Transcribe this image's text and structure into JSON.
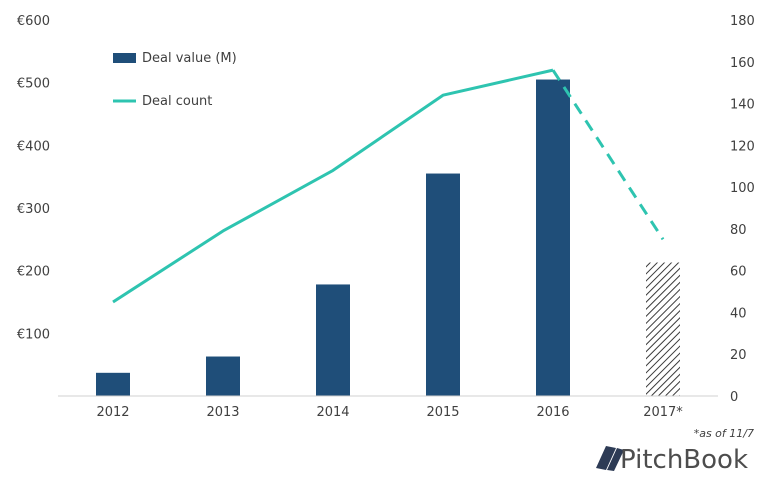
{
  "chart_data": {
    "type": "bar",
    "categories": [
      "2012",
      "2013",
      "2014",
      "2015",
      "2016",
      "2017*"
    ],
    "series": [
      {
        "name": "Deal value (M)",
        "type": "bar",
        "axis": "left",
        "values": [
          37,
          63,
          178,
          355,
          505,
          213
        ],
        "color": "#1f4e79",
        "hatched_last": true
      },
      {
        "name": "Deal count",
        "type": "line",
        "axis": "right",
        "values": [
          45,
          79,
          108,
          144,
          156,
          75
        ],
        "color": "#2ec4b0",
        "dashed_last_segment": true
      }
    ],
    "ylim_left": [
      0,
      600
    ],
    "yticks_left": [
      "",
      "€100",
      "€200",
      "€300",
      "€400",
      "€500",
      "€600"
    ],
    "ylim_right": [
      0,
      180
    ],
    "yticks_right": [
      "0",
      "20",
      "40",
      "60",
      "80",
      "100",
      "120",
      "140",
      "160",
      "180"
    ],
    "legend_placement": "top-left",
    "grid": false
  },
  "footnote": "*as of 11/7",
  "brand": "PitchBook"
}
